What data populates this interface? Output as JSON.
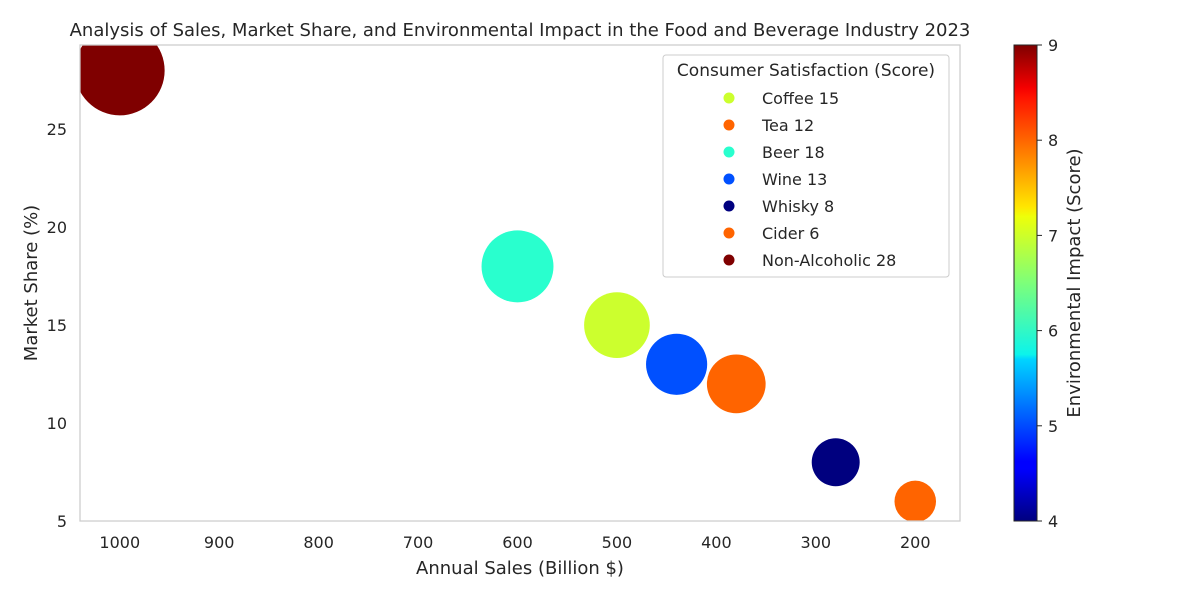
{
  "chart_data": {
    "type": "scatter",
    "title": "Analysis of Sales, Market Share, and Environmental Impact in the Food and Beverage Industry 2023",
    "xlabel": "Annual Sales (Billion $)",
    "ylabel": "Market Share (%)",
    "x_inverted": true,
    "xlim": [
      1040,
      155
    ],
    "ylim": [
      5,
      29.3
    ],
    "xticks": [
      1000,
      900,
      800,
      700,
      600,
      500,
      400,
      300,
      200
    ],
    "yticks": [
      5,
      10,
      15,
      20,
      25
    ],
    "grid": false,
    "legend": {
      "title": "Consumer Satisfaction (Score)",
      "placement": "top-right"
    },
    "colorbar": {
      "label": "Environmental Impact (Score)",
      "range": [
        4,
        9
      ],
      "ticks": [
        4,
        5,
        6,
        7,
        8,
        9
      ],
      "colormap": "jet"
    },
    "points": [
      {
        "name": "Coffee",
        "label": "Coffee 15",
        "sales": 500,
        "share": 15,
        "impact": 7.2,
        "satisfaction": 15,
        "color": "#ccff2e"
      },
      {
        "name": "Tea",
        "label": "Tea 12",
        "sales": 380,
        "share": 12,
        "impact": 8.1,
        "satisfaction": 12,
        "color": "#ff6400"
      },
      {
        "name": "Beer",
        "label": "Beer 18",
        "sales": 600,
        "share": 18,
        "impact": 6.1,
        "satisfaction": 18,
        "color": "#29ffce"
      },
      {
        "name": "Wine",
        "label": "Wine 13",
        "sales": 440,
        "share": 13,
        "impact": 5.2,
        "satisfaction": 13,
        "color": "#0050ff"
      },
      {
        "name": "Whisky",
        "label": "Whisky 8",
        "sales": 280,
        "share": 8,
        "impact": 4.0,
        "satisfaction": 8,
        "color": "#00007f"
      },
      {
        "name": "Cider",
        "label": "Cider 6",
        "sales": 200,
        "share": 6,
        "impact": 8.1,
        "satisfaction": 6,
        "color": "#ff6400"
      },
      {
        "name": "Non-Alcoholic",
        "label": "Non-Alcoholic 28",
        "sales": 1000,
        "share": 28,
        "impact": 9.0,
        "satisfaction": 28,
        "color": "#7f0000"
      }
    ]
  }
}
